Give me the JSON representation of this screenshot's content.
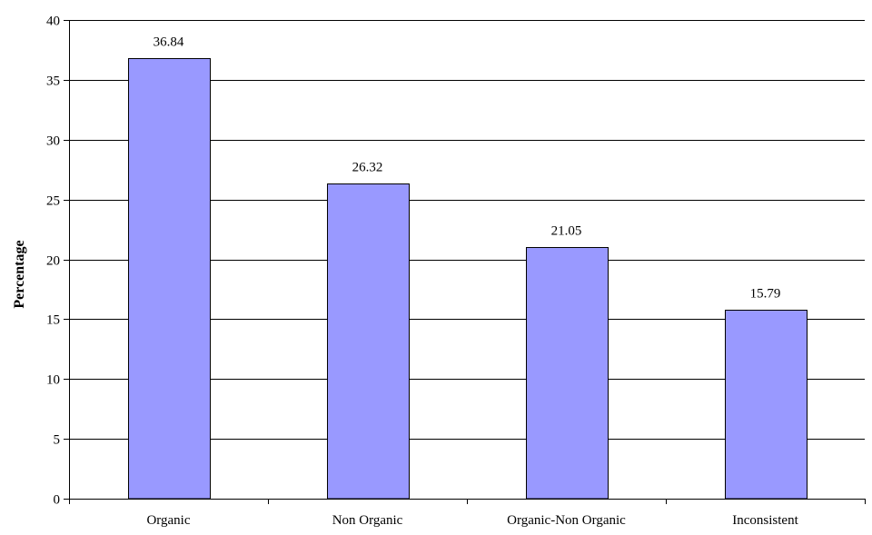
{
  "chart_data": {
    "type": "bar",
    "title": "",
    "xlabel": "",
    "ylabel": "Percentage",
    "categories": [
      "Organic",
      "Non Organic",
      "Organic-Non Organic",
      "Inconsistent"
    ],
    "values": [
      36.84,
      26.32,
      21.05,
      15.79
    ],
    "data_labels": [
      "36.84",
      "26.32",
      "21.05",
      "15.79"
    ],
    "ylim": [
      0,
      40
    ],
    "yticks": [
      0,
      5,
      10,
      15,
      20,
      25,
      30,
      35,
      40
    ],
    "grid": true,
    "legend": "none",
    "colors": {
      "bar_fill": "#9999ff",
      "bar_stroke": "#000000",
      "grid": "#000000",
      "text": "#000000"
    }
  }
}
